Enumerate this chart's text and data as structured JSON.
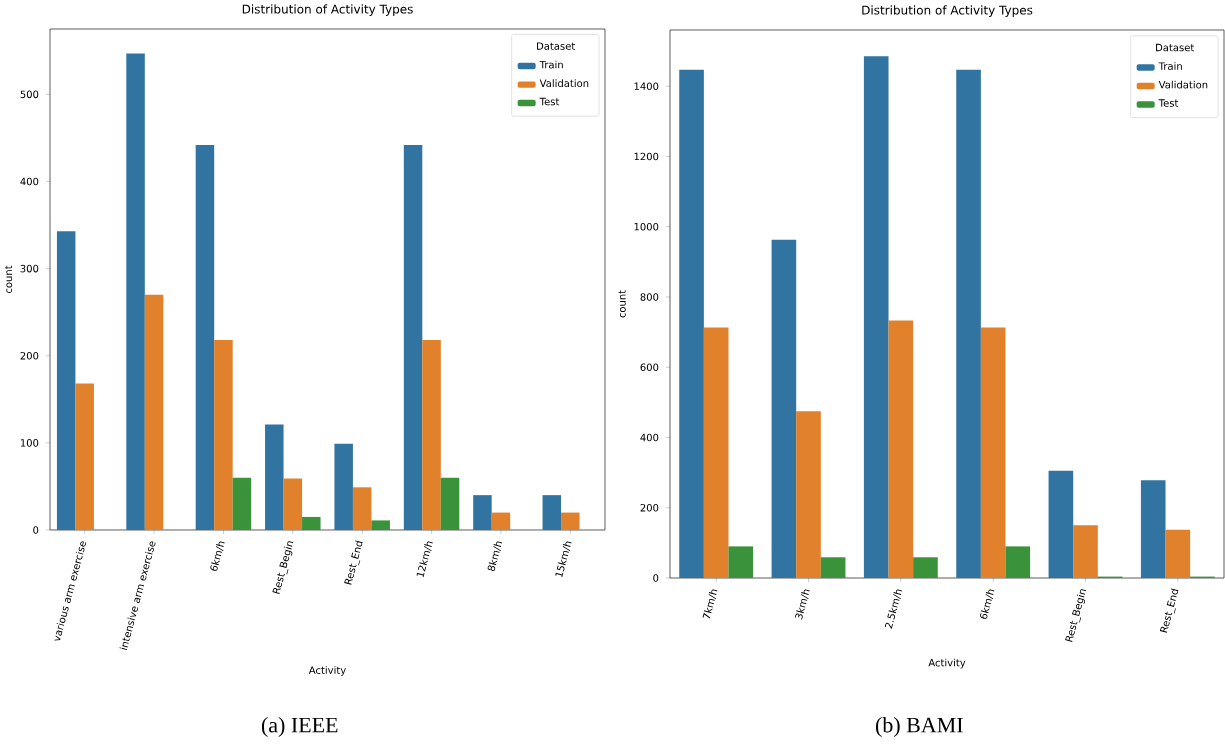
{
  "chart_data": [
    {
      "type": "bar",
      "title": "Distribution of Activity Types",
      "xlabel": "Activity",
      "ylabel": "count",
      "legend_title": "Dataset",
      "legend": "top right",
      "categories": [
        "various arm exercise",
        "intensive arm exercise",
        "6km/h",
        "Rest_Begin",
        "Rest_End",
        "12km/h",
        "8km/h",
        "15km/h"
      ],
      "series": [
        {
          "name": "Train",
          "color": "#3274a1",
          "values": [
            343,
            547,
            442,
            121,
            99,
            442,
            40,
            40
          ]
        },
        {
          "name": "Validation",
          "color": "#e1812c",
          "values": [
            168,
            270,
            218,
            59,
            49,
            218,
            20,
            20
          ]
        },
        {
          "name": "Test",
          "color": "#3a923a",
          "values": [
            0,
            0,
            60,
            15,
            11,
            60,
            0,
            0
          ]
        }
      ],
      "ylim": [
        0,
        575
      ],
      "yticks": [
        0,
        100,
        200,
        300,
        400,
        500
      ],
      "annotations": [
        "(a) IEEE"
      ]
    },
    {
      "type": "bar",
      "title": "Distribution of Activity Types",
      "xlabel": "Activity",
      "ylabel": "count",
      "legend_title": "Dataset",
      "legend": "top right",
      "categories": [
        "7km/h",
        "3km/h",
        "2.5km/h",
        "6km/h",
        "Rest_Begin",
        "Rest_End"
      ],
      "series": [
        {
          "name": "Train",
          "color": "#3274a1",
          "values": [
            1447,
            963,
            1485,
            1447,
            305,
            278
          ]
        },
        {
          "name": "Validation",
          "color": "#e1812c",
          "values": [
            713,
            475,
            733,
            713,
            150,
            137
          ]
        },
        {
          "name": "Test",
          "color": "#3a923a",
          "values": [
            90,
            59,
            59,
            90,
            4,
            4
          ]
        }
      ],
      "ylim": [
        0,
        1560
      ],
      "yticks": [
        0,
        200,
        400,
        600,
        800,
        1000,
        1200,
        1400
      ],
      "annotations": [
        "(b) BAMI"
      ]
    }
  ]
}
